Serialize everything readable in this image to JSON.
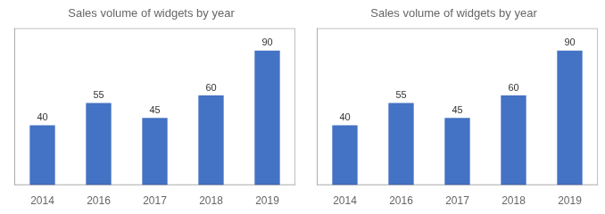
{
  "chart_data": [
    {
      "type": "bar",
      "title": "Sales volume of widgets by year",
      "categories": [
        "2014",
        "2016",
        "2017",
        "2018",
        "2019"
      ],
      "values": [
        40,
        55,
        45,
        60,
        90
      ],
      "color": "#4472C4",
      "ylim": [
        0,
        105
      ],
      "grid": false,
      "data_labels": true,
      "tick_labels": "x"
    },
    {
      "type": "bar",
      "title": "Sales volume of widgets by year",
      "categories": [
        "2014",
        "2016",
        "2017",
        "2018",
        "2019"
      ],
      "values": [
        40,
        55,
        45,
        60,
        90
      ],
      "color": "#4472C4",
      "ylim": [
        0,
        105
      ],
      "grid": false,
      "data_labels": true,
      "tick_labels": "x"
    }
  ]
}
